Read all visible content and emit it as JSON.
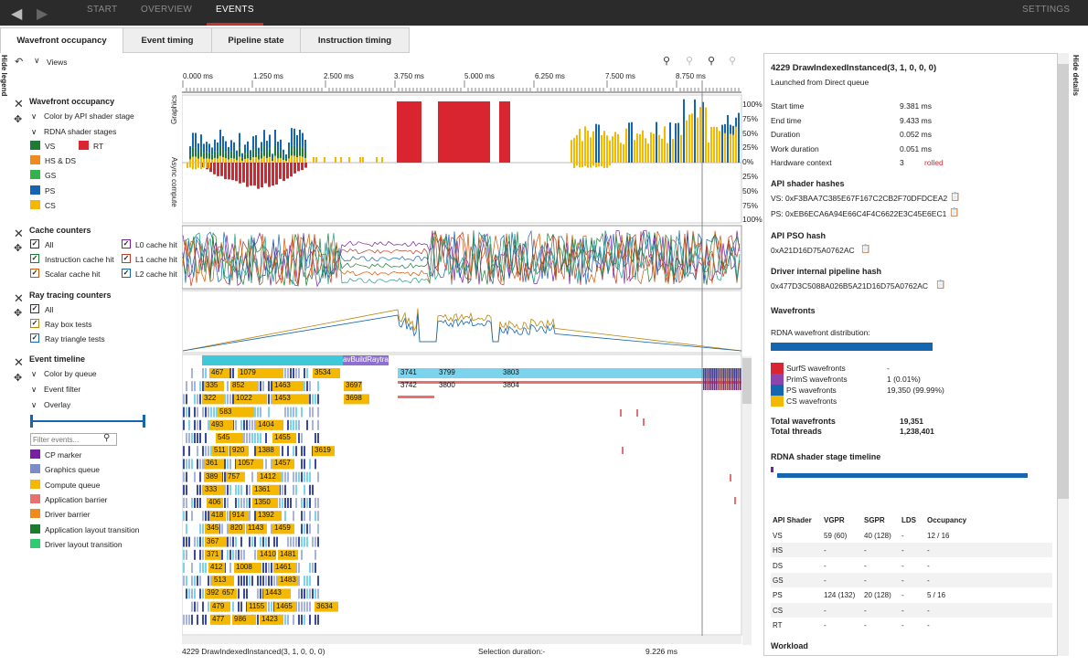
{
  "nav": {
    "start": "START",
    "overview": "OVERVIEW",
    "events": "EVENTS",
    "settings": "SETTINGS"
  },
  "tabs": [
    "Wavefront occupancy",
    "Event timing",
    "Pipeline state",
    "Instruction timing"
  ],
  "side": {
    "hide_legend": "Hide legend",
    "hide_details": "Hide details"
  },
  "views": "Views",
  "ruler": [
    "0.000 ms",
    "1.250 ms",
    "2.500 ms",
    "3.750 ms",
    "5.000 ms",
    "6.250 ms",
    "7.500 ms",
    "8.750 ms"
  ],
  "wave": {
    "title": "Wavefront occupancy",
    "color_by": "Color by API shader stage",
    "stages": "RDNA shader stages",
    "vs": "VS",
    "rt": "RT",
    "hsds": "HS & DS",
    "gs": "GS",
    "ps": "PS",
    "cs": "CS",
    "graphics": "Graphics",
    "async": "Async compute",
    "pct": [
      "100%",
      "75%",
      "50%",
      "25%",
      "0%",
      "25%",
      "50%",
      "75%",
      "100%"
    ]
  },
  "cache": {
    "title": "Cache counters",
    "all": "All",
    "l0": "L0 cache hit",
    "instr": "Instruction cache hit",
    "l1": "L1 cache hit",
    "scalar": "Scalar cache hit",
    "l2": "L2 cache hit"
  },
  "ray": {
    "title": "Ray tracing counters",
    "all": "All",
    "box": "Ray box tests",
    "tri": "Ray triangle tests"
  },
  "event": {
    "title": "Event timeline",
    "color_by": "Color by queue",
    "filter": "Event filter",
    "overlay": "Overlay",
    "filter_placeholder": "Filter events...",
    "cp": "CP marker",
    "gq": "Graphics queue",
    "cq": "Compute queue",
    "ab": "Application barrier",
    "db": "Driver barrier",
    "alt": "Application layout transition",
    "dlt": "Driver layout transition",
    "build": "BuildRaytrac",
    "av": "av"
  },
  "rows": [
    [
      [
        "467",
        229,
        22
      ],
      [
        "1079",
        260,
        50
      ],
      [
        "3534",
        342,
        30
      ],
      [
        "3741",
        436,
        36
      ],
      [
        "3799",
        478,
        60
      ],
      [
        "3803",
        548,
        70
      ]
    ],
    [
      [
        "335",
        223,
        22
      ],
      [
        "852",
        252,
        30
      ],
      [
        "1463",
        298,
        34
      ],
      [
        "3697",
        376,
        20
      ],
      [
        "3742",
        436,
        30
      ],
      [
        "3800",
        478,
        60
      ],
      [
        "3804",
        548,
        60
      ]
    ],
    [
      [
        "322",
        221,
        24
      ],
      [
        "1022",
        256,
        36
      ],
      [
        "1453",
        298,
        40
      ],
      [
        "3698",
        376,
        28
      ]
    ],
    [
      [
        "583",
        238,
        40
      ]
    ],
    [
      [
        "493",
        229,
        26
      ],
      [
        "1404",
        280,
        30
      ]
    ],
    [
      [
        "545",
        236,
        30
      ],
      [
        "1455",
        298,
        26
      ]
    ],
    [
      [
        "511",
        232,
        18
      ],
      [
        "920",
        252,
        20
      ],
      [
        "1388",
        280,
        26
      ],
      [
        "3619",
        342,
        24
      ]
    ],
    [
      [
        "361",
        223,
        22
      ],
      [
        "1057",
        258,
        30
      ],
      [
        "1457",
        298,
        24
      ]
    ],
    [
      [
        "389",
        223,
        20
      ],
      [
        "757",
        247,
        20
      ],
      [
        "1412",
        282,
        26
      ]
    ],
    [
      [
        "333",
        222,
        24
      ],
      [
        "1361",
        276,
        30
      ]
    ],
    [
      [
        "406",
        226,
        18
      ],
      [
        "1350",
        276,
        28
      ]
    ],
    [
      [
        "418",
        229,
        18
      ],
      [
        "914",
        252,
        20
      ],
      [
        "1392",
        280,
        28
      ]
    ],
    [
      [
        "345",
        224,
        16
      ],
      [
        "820",
        250,
        18
      ],
      [
        "1143",
        269,
        22
      ],
      [
        "1459",
        298,
        24
      ]
    ],
    [
      [
        "367",
        224,
        24
      ]
    ],
    [
      [
        "371",
        224,
        18
      ],
      [
        "1410",
        282,
        20
      ],
      [
        "1481",
        304,
        22
      ]
    ],
    [
      [
        "412",
        228,
        18
      ],
      [
        "1008",
        256,
        30
      ],
      [
        "1461",
        299,
        24
      ]
    ],
    [
      [
        "513",
        232,
        24
      ],
      [
        "1483",
        304,
        22
      ]
    ],
    [
      [
        "392",
        224,
        18
      ],
      [
        "657",
        241,
        18
      ],
      [
        "1443",
        288,
        30
      ]
    ],
    [
      [
        "479",
        230,
        22
      ],
      [
        "1155",
        270,
        22
      ],
      [
        "1465",
        300,
        24
      ],
      [
        "3634",
        344,
        26
      ]
    ],
    [
      [
        "477",
        230,
        22
      ],
      [
        "986",
        254,
        26
      ],
      [
        "1423",
        284,
        26
      ]
    ]
  ],
  "status": {
    "event": "4229 DrawIndexedInstanced(3, 1, 0, 0, 0)",
    "sel": "Selection duration:-",
    "time": "9.226 ms"
  },
  "details": {
    "title": "4229 DrawIndexedInstanced(3, 1, 0, 0, 0)",
    "launched": "Launched from Direct queue",
    "rows": [
      [
        "Start time",
        "9.381 ms"
      ],
      [
        "End time",
        "9.433 ms"
      ],
      [
        "Duration",
        "0.052 ms"
      ],
      [
        "Work duration",
        "0.051 ms"
      ],
      [
        "Hardware context",
        "3"
      ]
    ],
    "rolled": "rolled",
    "hash_title": "API shader hashes",
    "vs_hash": "VS: 0xF3BAA7C385E67F167C2CB2F70DFDCEA2",
    "ps_hash": "PS: 0xEB6ECA6A94E66C4F4C6622E3C45E6EC1",
    "pso_title": "API PSO hash",
    "pso": "0xA21D16D75A0762AC",
    "drv_title": "Driver internal pipeline hash",
    "drv": "0x477D3C5088A026B5A21D16D75A0762AC",
    "wf_title": "Wavefronts",
    "dist": "RDNA wavefront distribution:",
    "wf": [
      [
        "SurfS wavefronts",
        "-"
      ],
      [
        "PrimS wavefronts",
        "1 (0.01%)"
      ],
      [
        "PS wavefronts",
        "19,350 (99.99%)"
      ],
      [
        "CS wavefronts",
        ""
      ]
    ],
    "total_wf": [
      "Total wavefronts",
      "19,351"
    ],
    "total_th": [
      "Total threads",
      "1,238,401"
    ],
    "stl": "RDNA shader stage timeline",
    "thead": [
      "API Shader",
      "VGPR",
      "SGPR",
      "LDS",
      "Occupancy"
    ],
    "trows": [
      [
        "VS",
        "59 (60)",
        "40 (128)",
        "-",
        "12 / 16"
      ],
      [
        "HS",
        "-",
        "-",
        "-",
        "-"
      ],
      [
        "DS",
        "-",
        "-",
        "-",
        "-"
      ],
      [
        "GS",
        "-",
        "-",
        "-",
        "-"
      ],
      [
        "PS",
        "124 (132)",
        "20 (128)",
        "-",
        "5 / 16"
      ],
      [
        "CS",
        "-",
        "-",
        "-",
        "-"
      ],
      [
        "RT",
        "-",
        "-",
        "-",
        "-"
      ]
    ],
    "workload": "Workload"
  },
  "colors": {
    "vs": "#1e7b34",
    "rt": "#d9252f",
    "hsds": "#f08a1c",
    "gs": "#2fb34a",
    "ps": "#1466b0",
    "cs": "#f5b800",
    "cp": "#7b1fa2",
    "gq": "#7b8cc8",
    "cqc": "#f5b800",
    "ab": "#e87070",
    "db": "#f08a1c",
    "alt": "#1a7d2c",
    "dlt": "#2ecc71"
  }
}
